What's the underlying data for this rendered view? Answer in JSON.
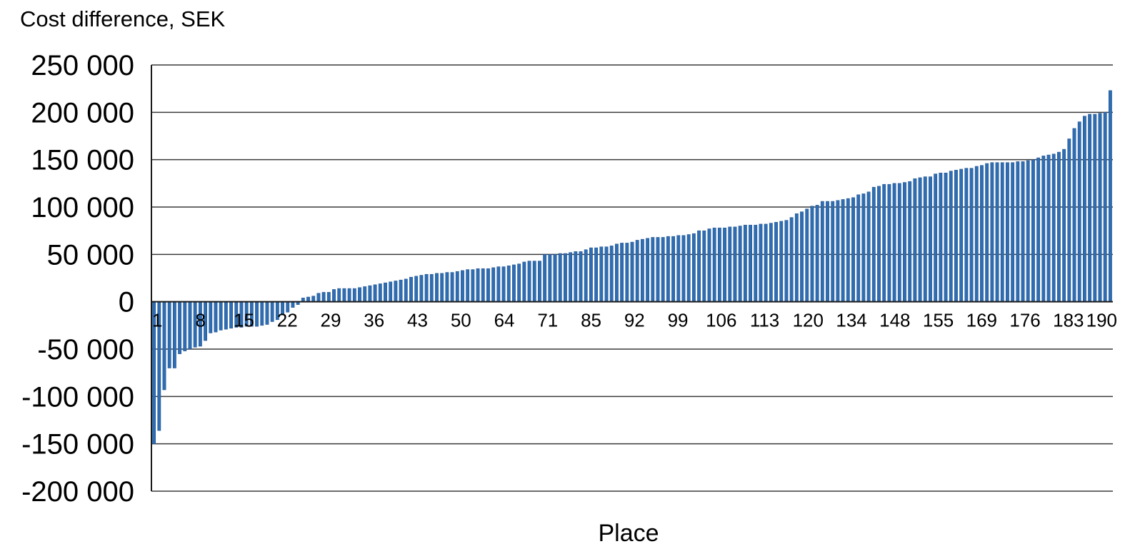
{
  "chart_data": {
    "type": "bar",
    "title": "",
    "ylabel": "Cost difference, SEK",
    "xlabel": "Place",
    "ylim": [
      -200000,
      250000
    ],
    "y_ticks": [
      250000,
      200000,
      150000,
      100000,
      50000,
      0,
      -50000,
      -100000,
      -150000,
      -200000
    ],
    "y_tick_labels": [
      "250 000",
      "200 000",
      "150 000",
      "100 000",
      "50 000",
      "0",
      "-50 000",
      "-100 000",
      "-150 000",
      "-200 000"
    ],
    "x_tick_labels": [
      "1",
      "8",
      "15",
      "22",
      "29",
      "36",
      "43",
      "50",
      "64",
      "71",
      "85",
      "92",
      "99",
      "106",
      "113",
      "120",
      "134",
      "148",
      "155",
      "169",
      "176",
      "183",
      "190"
    ],
    "grid": true,
    "bar_color": "#2f6db3",
    "series": [
      {
        "values": [
          -150000,
          -136000,
          -93000,
          -70000,
          -70000,
          -55000,
          -52000,
          -50000,
          -48000,
          -47000,
          -41000,
          -33000,
          -32000,
          -30000,
          -29000,
          -28000,
          -27000,
          -27000,
          -26000,
          -26000,
          -26000,
          -25000,
          -24000,
          -21000,
          -19000,
          -14000,
          -11000,
          -6000,
          -3000,
          4000,
          5000,
          6000,
          9000,
          10000,
          10000,
          13000,
          14000,
          14000,
          14000,
          14000,
          15000,
          16000,
          17000,
          18000,
          19000,
          20000,
          21000,
          22000,
          23000,
          24000,
          26000,
          27000,
          28000,
          29000,
          29000,
          30000,
          30000,
          31000,
          31000,
          32000,
          33000,
          34000,
          34000,
          35000,
          35000,
          35000,
          36000,
          37000,
          37000,
          38000,
          39000,
          40000,
          42000,
          43000,
          43000,
          43000,
          50000,
          50000,
          50000,
          51000,
          51000,
          52000,
          53000,
          53000,
          55000,
          57000,
          57000,
          58000,
          58000,
          59000,
          61000,
          62000,
          62000,
          63000,
          65000,
          66000,
          67000,
          68000,
          68000,
          68000,
          69000,
          69000,
          70000,
          70000,
          71000,
          72000,
          75000,
          75000,
          77000,
          78000,
          78000,
          78000,
          79000,
          79000,
          80000,
          81000,
          81000,
          81000,
          82000,
          82000,
          83000,
          84000,
          85000,
          86000,
          89000,
          93000,
          95000,
          98000,
          101000,
          102000,
          106000,
          106000,
          106000,
          107000,
          108000,
          109000,
          110000,
          113000,
          114000,
          116000,
          121000,
          122000,
          124000,
          124000,
          125000,
          125000,
          126000,
          127000,
          130000,
          131000,
          132000,
          132000,
          135000,
          136000,
          136000,
          138000,
          139000,
          140000,
          141000,
          141000,
          143000,
          144000,
          146000,
          147000,
          147000,
          147000,
          147000,
          147000,
          148000,
          148000,
          149000,
          150000,
          152000,
          154000,
          155000,
          156000,
          158000,
          161000,
          172000,
          183000,
          190000,
          196000,
          198000,
          198000,
          199000,
          200000,
          223000
        ]
      }
    ]
  }
}
